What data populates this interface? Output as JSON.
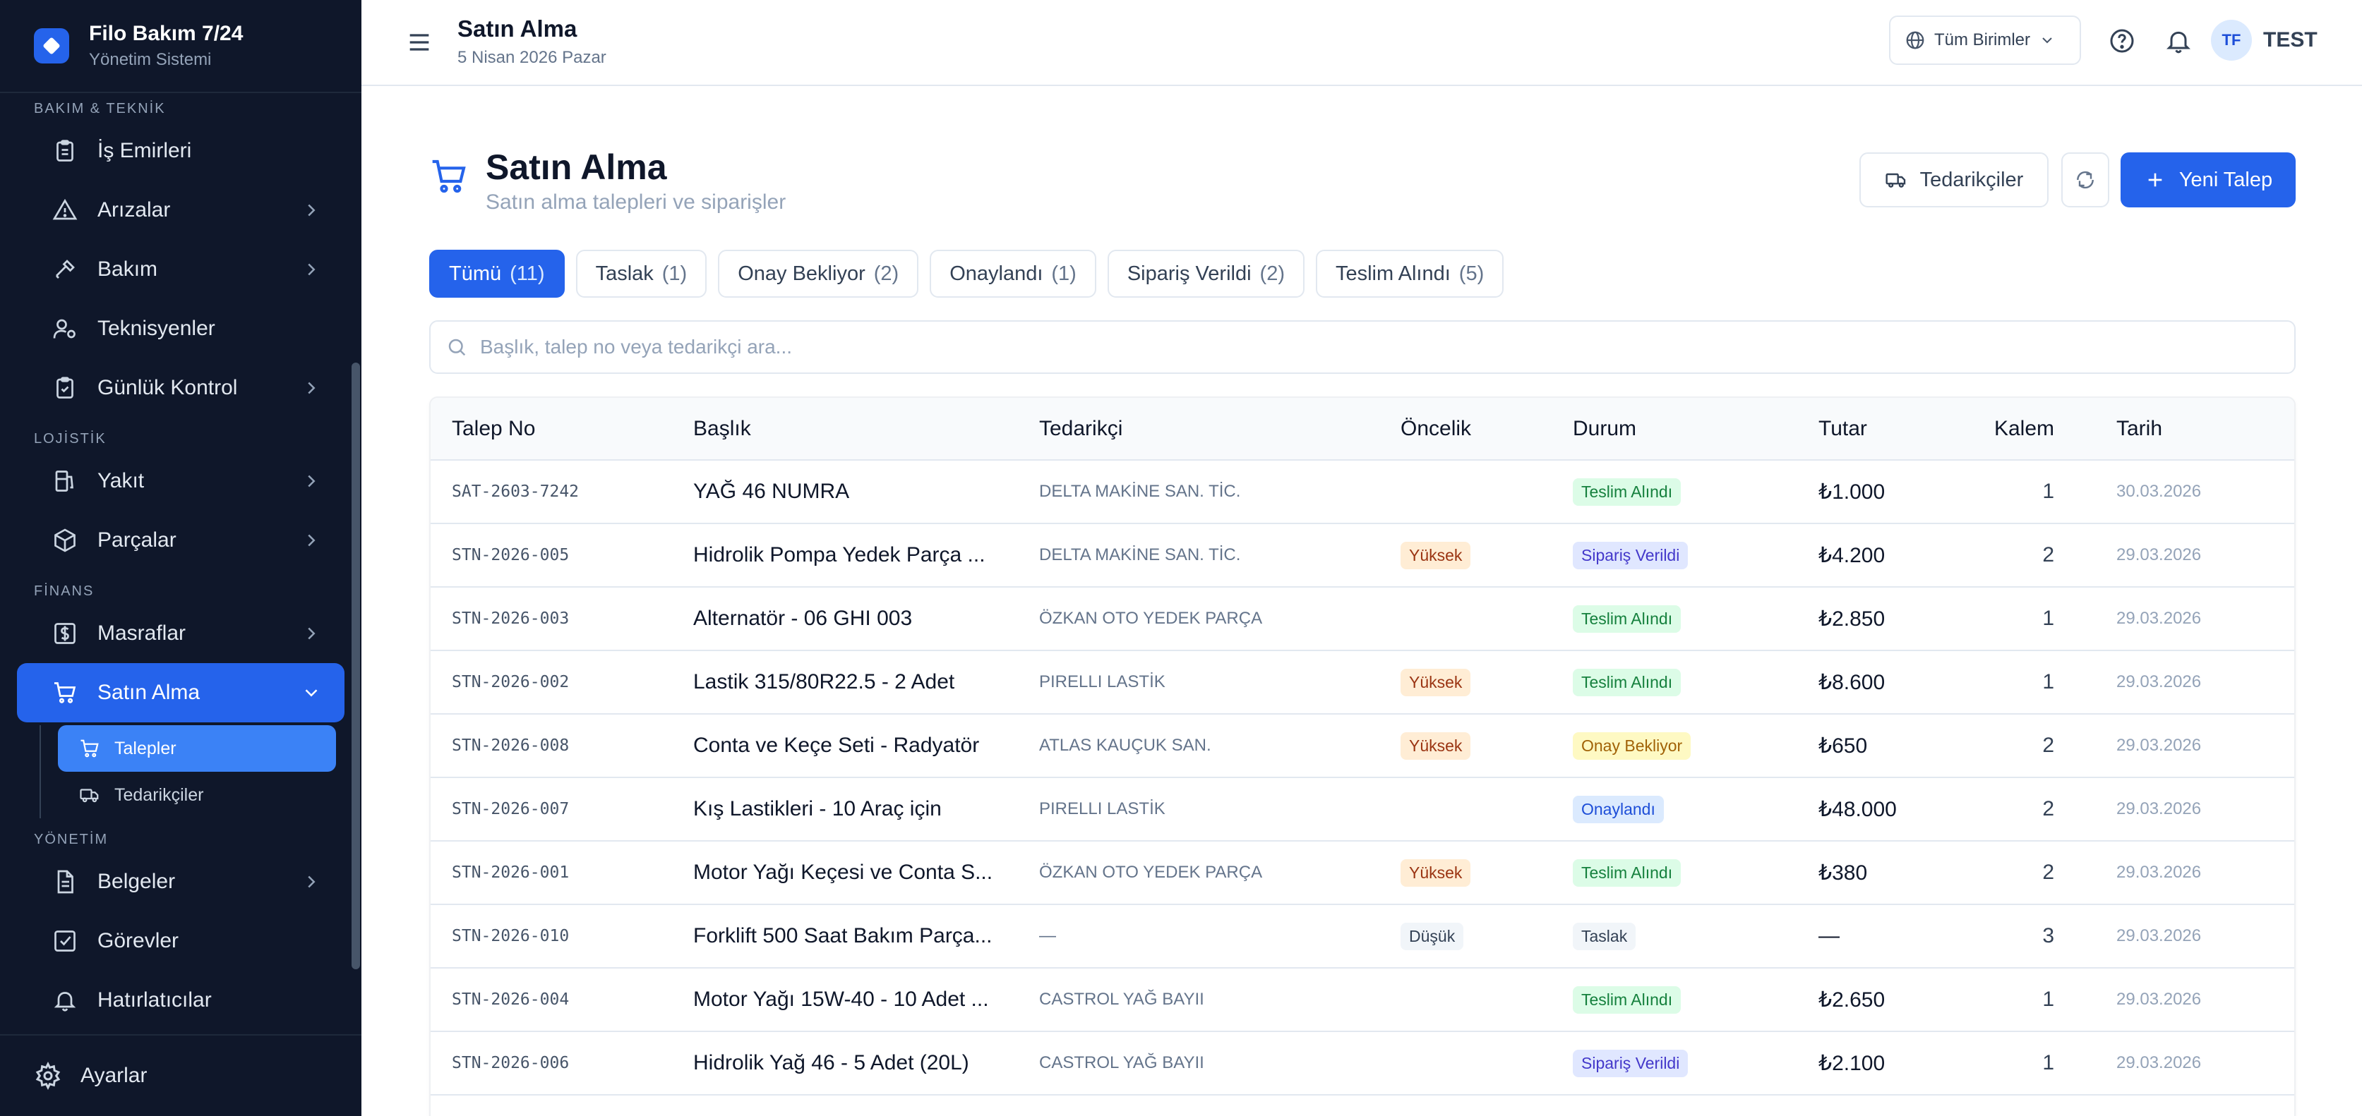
{
  "brand": {
    "title": "Filo Bakım 7/24",
    "subtitle": "Yönetim Sistemi"
  },
  "sidebar": {
    "sections": {
      "bakim": "BAKIM & TEKNİK",
      "lojistik": "LOJİSTİK",
      "finans": "FİNANS",
      "yonetim": "YÖNETİM"
    },
    "items": {
      "is_emirleri": "İş Emirleri",
      "arizalar": "Arızalar",
      "bakim": "Bakım",
      "teknisyenler": "Teknisyenler",
      "gunluk_kontrol": "Günlük Kontrol",
      "yakit": "Yakıt",
      "parcalar": "Parçalar",
      "masraflar": "Masraflar",
      "satin_alma": "Satın Alma",
      "talepler": "Talepler",
      "tedarikciler": "Tedarikçiler",
      "belgeler": "Belgeler",
      "gorevler": "Görevler",
      "hatirlaticilar": "Hatırlatıcılar"
    },
    "footer": "Ayarlar"
  },
  "topbar": {
    "title": "Satın Alma",
    "date": "5 Nisan 2026 Pazar",
    "unit_select": "Tüm Birimler",
    "avatar_initials": "TF",
    "user_name": "TEST"
  },
  "page": {
    "title": "Satın Alma",
    "subtitle": "Satın alma talepleri ve siparişler",
    "suppliers_button": "Tedarikçiler",
    "new_button": "Yeni Talep"
  },
  "tabs": [
    {
      "label": "Tümü",
      "count": "(11)"
    },
    {
      "label": "Taslak",
      "count": "(1)"
    },
    {
      "label": "Onay Bekliyor",
      "count": "(2)"
    },
    {
      "label": "Onaylandı",
      "count": "(1)"
    },
    {
      "label": "Sipariş Verildi",
      "count": "(2)"
    },
    {
      "label": "Teslim Alındı",
      "count": "(5)"
    }
  ],
  "search": {
    "placeholder": "Başlık, talep no veya tedarikçi ara..."
  },
  "table": {
    "headers": {
      "no": "Talep No",
      "title": "Başlık",
      "supplier": "Tedarikçi",
      "priority": "Öncelik",
      "status": "Durum",
      "amount": "Tutar",
      "qty": "Kalem",
      "date": "Tarih"
    },
    "rows": [
      {
        "no": "SAT-2603-7242",
        "title": "YAĞ 46 NUMRA",
        "supplier": "DELTA MAKİNE SAN. TİC.",
        "priority": "",
        "status": "Teslim Alındı",
        "amount": "₺1.000",
        "qty": "1",
        "date": "30.03.2026"
      },
      {
        "no": "STN-2026-005",
        "title": "Hidrolik Pompa Yedek Parça ...",
        "supplier": "DELTA MAKİNE SAN. TİC.",
        "priority": "Yüksek",
        "status": "Sipariş Verildi",
        "amount": "₺4.200",
        "qty": "2",
        "date": "29.03.2026"
      },
      {
        "no": "STN-2026-003",
        "title": "Alternatör - 06 GHI 003",
        "supplier": "ÖZKAN OTO YEDEK PARÇA",
        "priority": "",
        "status": "Teslim Alındı",
        "amount": "₺2.850",
        "qty": "1",
        "date": "29.03.2026"
      },
      {
        "no": "STN-2026-002",
        "title": "Lastik 315/80R22.5 - 2 Adet",
        "supplier": "PIRELLI LASTİK",
        "priority": "Yüksek",
        "status": "Teslim Alındı",
        "amount": "₺8.600",
        "qty": "1",
        "date": "29.03.2026"
      },
      {
        "no": "STN-2026-008",
        "title": "Conta ve Keçe Seti - Radyatör",
        "supplier": "ATLAS KAUÇUK SAN.",
        "priority": "Yüksek",
        "status": "Onay Bekliyor",
        "amount": "₺650",
        "qty": "2",
        "date": "29.03.2026"
      },
      {
        "no": "STN-2026-007",
        "title": "Kış Lastikleri - 10 Araç için",
        "supplier": "PIRELLI LASTİK",
        "priority": "",
        "status": "Onaylandı",
        "amount": "₺48.000",
        "qty": "2",
        "date": "29.03.2026"
      },
      {
        "no": "STN-2026-001",
        "title": "Motor Yağı Keçesi ve Conta S...",
        "supplier": "ÖZKAN OTO YEDEK PARÇA",
        "priority": "Yüksek",
        "status": "Teslim Alındı",
        "amount": "₺380",
        "qty": "2",
        "date": "29.03.2026"
      },
      {
        "no": "STN-2026-010",
        "title": "Forklift 500 Saat Bakım Parça...",
        "supplier": "—",
        "priority": "Düşük",
        "status": "Taslak",
        "amount": "—",
        "qty": "3",
        "date": "29.03.2026"
      },
      {
        "no": "STN-2026-004",
        "title": "Motor Yağı 15W-40 - 10 Adet ...",
        "supplier": "CASTROL YAĞ BAYII",
        "priority": "",
        "status": "Teslim Alındı",
        "amount": "₺2.650",
        "qty": "1",
        "date": "29.03.2026"
      },
      {
        "no": "STN-2026-006",
        "title": "Hidrolik Yağ 46 - 5 Adet (20L)",
        "supplier": "CASTROL YAĞ BAYII",
        "priority": "",
        "status": "Sipariş Verildi",
        "amount": "₺2.100",
        "qty": "1",
        "date": "29.03.2026"
      }
    ]
  },
  "colors": {
    "accent": "#2563eb",
    "sidebar_bg": "#0f172a",
    "status_delivered": "#15803d",
    "status_ordered": "#4338ca",
    "status_pending": "#a16207",
    "status_approved": "#1d4ed8",
    "priority_high": "#9a3412"
  }
}
